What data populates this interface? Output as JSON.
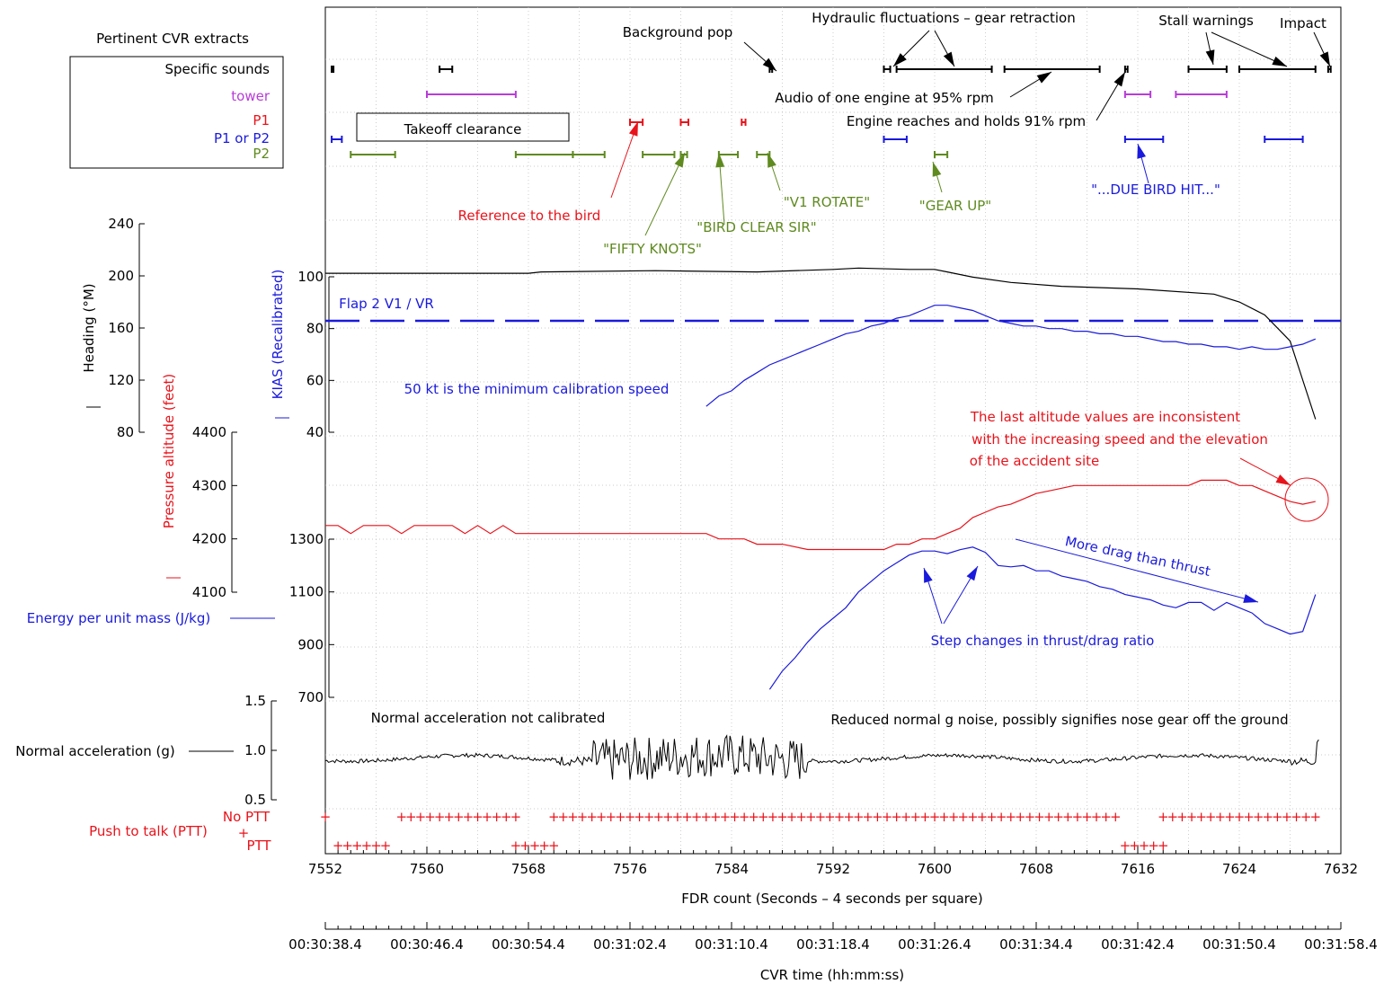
{
  "colors": {
    "black": "#000000",
    "blue": "#1a1adc",
    "red": "#e8131b",
    "green": "#5f8a1f",
    "purple": "#b83cd8"
  },
  "chart_data": {
    "type": "line",
    "xlabel": "FDR count (Seconds – 4 seconds per square)",
    "xlim": [
      7552,
      7632
    ],
    "x_ticks": [
      "7552",
      "7560",
      "7568",
      "7576",
      "7584",
      "7592",
      "7600",
      "7608",
      "7616",
      "7624",
      "7632"
    ],
    "cvr_axis": {
      "label": "CVR time (hh:mm:ss)",
      "ticks": [
        "00:30:38.4",
        "00:30:46.4",
        "00:30:54.4",
        "00:31:02.4",
        "00:31:10.4",
        "00:31:18.4",
        "00:31:26.4",
        "00:31:34.4",
        "00:31:42.4",
        "00:31:50.4",
        "00:31:58.4"
      ]
    },
    "cvr_panel": {
      "title": "Pertinent CVR extracts",
      "legend": [
        {
          "label": "Specific sounds",
          "color": "#000000"
        },
        {
          "label": "tower",
          "color": "#b83cd8"
        },
        {
          "label": "P1",
          "color": "#e8131b"
        },
        {
          "label": "P1 or P2",
          "color": "#1a1adc"
        },
        {
          "label": "P2",
          "color": "#5f8a1f"
        }
      ],
      "segments": {
        "sounds": [
          [
            7552.5,
            7552.6
          ],
          [
            7561,
            7562
          ],
          [
            7587,
            7587.2
          ],
          [
            7596,
            7596.5
          ],
          [
            7597,
            7604.5
          ],
          [
            7605.5,
            7613
          ],
          [
            7615,
            7615.2
          ],
          [
            7620,
            7623
          ],
          [
            7624,
            7630
          ],
          [
            7631,
            7631.2
          ]
        ],
        "tower": [
          [
            7560,
            7567
          ],
          [
            7615,
            7617
          ],
          [
            7619,
            7623
          ]
        ],
        "p1": [
          [
            7576,
            7577
          ],
          [
            7580,
            7580.6
          ],
          [
            7584.8,
            7585.1
          ]
        ],
        "p1orp2": [
          [
            7552.5,
            7553.3
          ],
          [
            7596,
            7597.8
          ],
          [
            7615,
            7618
          ],
          [
            7626,
            7629
          ]
        ],
        "p2": [
          [
            7554,
            7557.5
          ],
          [
            7567,
            7571.5
          ],
          [
            7571.5,
            7574
          ],
          [
            7577,
            7579.5
          ],
          [
            7580,
            7580.5
          ],
          [
            7583,
            7584.5
          ],
          [
            7586,
            7587
          ],
          [
            7600,
            7601
          ]
        ]
      }
    },
    "annotations": {
      "takeoff_clearance": "Takeoff clearance",
      "background_pop": "Background pop",
      "hydraulic": "Hydraulic fluctuations – gear retraction",
      "stall": "Stall warnings",
      "impact": "Impact",
      "audio_engine": "Audio of one engine at 95% rpm",
      "engine_holds": "Engine reaches and holds 91% rpm",
      "bird_ref": "Reference to the bird",
      "fifty": "\"FIFTY KNOTS\"",
      "bird_clear": "\"BIRD CLEAR SIR\"",
      "v1_rotate": "\"V1 ROTATE\"",
      "gear_up": "\"GEAR UP\"",
      "due_bird": "\"...DUE BIRD HIT...\"",
      "flap": "Flap 2 V1 / VR",
      "min_cal": "50 kt is the minimum calibration speed",
      "last_alt_1": "The last altitude values are inconsistent",
      "last_alt_2": "with the increasing speed and the elevation",
      "last_alt_3": "of the accident site",
      "more_drag": "More drag than thrust",
      "step_changes": "Step changes in thrust/drag ratio",
      "normal_not_cal": "Normal acceleration not calibrated",
      "reduced_g": "Reduced normal g noise, possibly signifies nose gear off the ground"
    },
    "axes": {
      "heading": {
        "label": "Heading (°M)",
        "ticks": [
          "80",
          "120",
          "160",
          "200",
          "240"
        ],
        "ylim": [
          80,
          240
        ]
      },
      "kias": {
        "label": "KIAS (Recalibrated)",
        "ticks": [
          "40",
          "60",
          "80",
          "100"
        ],
        "ylim": [
          40,
          100
        ]
      },
      "altitude": {
        "label": "Pressure altitude (feet)",
        "ticks": [
          "4100",
          "4200",
          "4300",
          "4400"
        ],
        "ylim": [
          4100,
          4400
        ]
      },
      "energy": {
        "label": "Energy per unit mass (J/kg)",
        "ticks": [
          "700",
          "900",
          "1100",
          "1300"
        ],
        "ylim": [
          700,
          1300
        ]
      },
      "normal_g": {
        "label": "Normal acceleration (g)",
        "ticks": [
          "0.5",
          "1.0",
          "1.5"
        ],
        "ylim": [
          0.5,
          1.5
        ]
      },
      "ptt": {
        "label": "Push to talk (PTT)",
        "no_ptt": "No PTT",
        "ptt": "PTT"
      }
    },
    "vr_speed": 83,
    "series": [
      {
        "name": "Heading",
        "color": "#000000",
        "axis": "heading",
        "x": [
          7552,
          7568,
          7569,
          7578,
          7586,
          7592,
          7594,
          7598,
          7600,
          7601,
          7603,
          7606,
          7610,
          7616,
          7622,
          7624,
          7626,
          7628,
          7629,
          7630
        ],
        "y": [
          202,
          202,
          203,
          204,
          203,
          205,
          206,
          205,
          205,
          203,
          199,
          195,
          192,
          190,
          186,
          180,
          170,
          150,
          120,
          90
        ]
      },
      {
        "name": "KIAS",
        "color": "#1a1adc",
        "axis": "kias",
        "x": [
          7582,
          7583,
          7584,
          7585,
          7586,
          7587,
          7588,
          7589,
          7590,
          7591,
          7592,
          7593,
          7594,
          7595,
          7596,
          7597,
          7598,
          7599,
          7600,
          7601,
          7602,
          7603,
          7604,
          7605,
          7606,
          7607,
          7608,
          7609,
          7610,
          7611,
          7612,
          7613,
          7614,
          7615,
          7616,
          7617,
          7618,
          7619,
          7620,
          7621,
          7622,
          7623,
          7624,
          7625,
          7626,
          7627,
          7628,
          7629,
          7630
        ],
        "y": [
          50,
          54,
          56,
          60,
          63,
          66,
          68,
          70,
          72,
          74,
          76,
          78,
          79,
          81,
          82,
          84,
          85,
          87,
          89,
          89,
          88,
          87,
          85,
          83,
          82,
          81,
          81,
          80,
          80,
          79,
          79,
          78,
          78,
          77,
          77,
          76,
          75,
          75,
          74,
          74,
          73,
          73,
          72,
          73,
          72,
          72,
          73,
          74,
          76
        ]
      },
      {
        "name": "Pressure altitude",
        "color": "#e8131b",
        "axis": "altitude",
        "x": [
          7552,
          7553,
          7554,
          7555,
          7556,
          7557,
          7558,
          7559,
          7560,
          7561,
          7562,
          7563,
          7564,
          7565,
          7566,
          7567,
          7568,
          7570,
          7572,
          7574,
          7576,
          7578,
          7580,
          7582,
          7583,
          7585,
          7586,
          7588,
          7590,
          7592,
          7594,
          7596,
          7597,
          7598,
          7599,
          7600,
          7601,
          7602,
          7603,
          7604,
          7605,
          7606,
          7607,
          7608,
          7609,
          7610,
          7611,
          7612,
          7614,
          7616,
          7618,
          7620,
          7621,
          7622,
          7623,
          7624,
          7625,
          7626,
          7627,
          7628,
          7629,
          7630
        ],
        "y": [
          4225,
          4225,
          4210,
          4225,
          4225,
          4225,
          4210,
          4225,
          4225,
          4225,
          4225,
          4210,
          4225,
          4210,
          4225,
          4210,
          4210,
          4210,
          4210,
          4210,
          4210,
          4210,
          4210,
          4210,
          4200,
          4200,
          4190,
          4190,
          4180,
          4180,
          4180,
          4180,
          4190,
          4190,
          4200,
          4200,
          4210,
          4220,
          4240,
          4250,
          4260,
          4265,
          4275,
          4285,
          4290,
          4295,
          4300,
          4300,
          4300,
          4300,
          4300,
          4300,
          4310,
          4310,
          4310,
          4300,
          4300,
          4290,
          4280,
          4270,
          4265,
          4270
        ]
      },
      {
        "name": "Energy",
        "color": "#1a1adc",
        "axis": "energy",
        "x": [
          7587,
          7588,
          7589,
          7590,
          7591,
          7592,
          7593,
          7594,
          7595,
          7596,
          7597,
          7598,
          7599,
          7600,
          7601,
          7602,
          7603,
          7604,
          7605,
          7606,
          7607,
          7608,
          7609,
          7610,
          7611,
          7612,
          7613,
          7614,
          7615,
          7616,
          7617,
          7618,
          7619,
          7620,
          7621,
          7622,
          7623,
          7624,
          7625,
          7626,
          7627,
          7628,
          7629,
          7630
        ],
        "y": [
          730,
          800,
          850,
          910,
          960,
          1000,
          1040,
          1100,
          1140,
          1180,
          1210,
          1240,
          1255,
          1255,
          1245,
          1260,
          1270,
          1250,
          1200,
          1195,
          1200,
          1180,
          1180,
          1160,
          1150,
          1140,
          1120,
          1110,
          1090,
          1080,
          1070,
          1050,
          1040,
          1060,
          1060,
          1030,
          1060,
          1040,
          1020,
          980,
          960,
          940,
          950,
          1090
        ]
      },
      {
        "name": "Normal acceleration",
        "color": "#000000",
        "axis": "normal_g",
        "type": "noisy"
      },
      {
        "name": "PTT",
        "color": "#e8131b",
        "axis": "ptt",
        "type": "markers",
        "no_ptt_ranges": [
          [
            7552,
            7552.4
          ],
          [
            7558,
            7567
          ],
          [
            7570,
            7614.5
          ],
          [
            7618,
            7630
          ]
        ],
        "ptt_ranges": [
          [
            7553,
            7557
          ],
          [
            7567,
            7570
          ],
          [
            7615,
            7618
          ]
        ]
      }
    ]
  }
}
